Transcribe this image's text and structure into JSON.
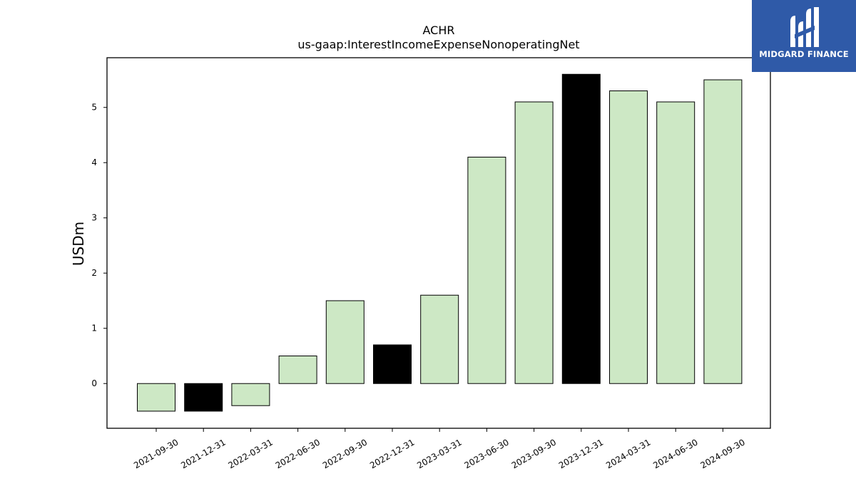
{
  "brand": {
    "name": "MIDGARD FINANCE"
  },
  "chart_data": {
    "type": "bar",
    "title": "ACHR",
    "subtitle": "us-gaap:InterestIncomeExpenseNonoperatingNet",
    "xlabel": "",
    "ylabel": "USDm",
    "categories": [
      "2021-09-30",
      "2021-12-31",
      "2022-03-31",
      "2022-06-30",
      "2022-09-30",
      "2022-12-31",
      "2023-03-31",
      "2023-06-30",
      "2023-09-30",
      "2023-12-31",
      "2024-03-31",
      "2024-06-30",
      "2024-09-30"
    ],
    "values": [
      -0.5,
      -0.5,
      -0.4,
      0.5,
      1.5,
      0.7,
      1.6,
      4.1,
      5.1,
      5.6,
      5.3,
      5.1,
      5.5
    ],
    "highlight": [
      false,
      true,
      false,
      false,
      false,
      true,
      false,
      false,
      false,
      true,
      false,
      false,
      false
    ],
    "yticks": [
      0,
      1,
      2,
      3,
      4,
      5
    ],
    "ylim": [
      -0.81,
      5.9
    ],
    "grid": false,
    "colors": {
      "bar": "#cde8c5",
      "highlight": "#000000",
      "edge": "#000000"
    }
  }
}
